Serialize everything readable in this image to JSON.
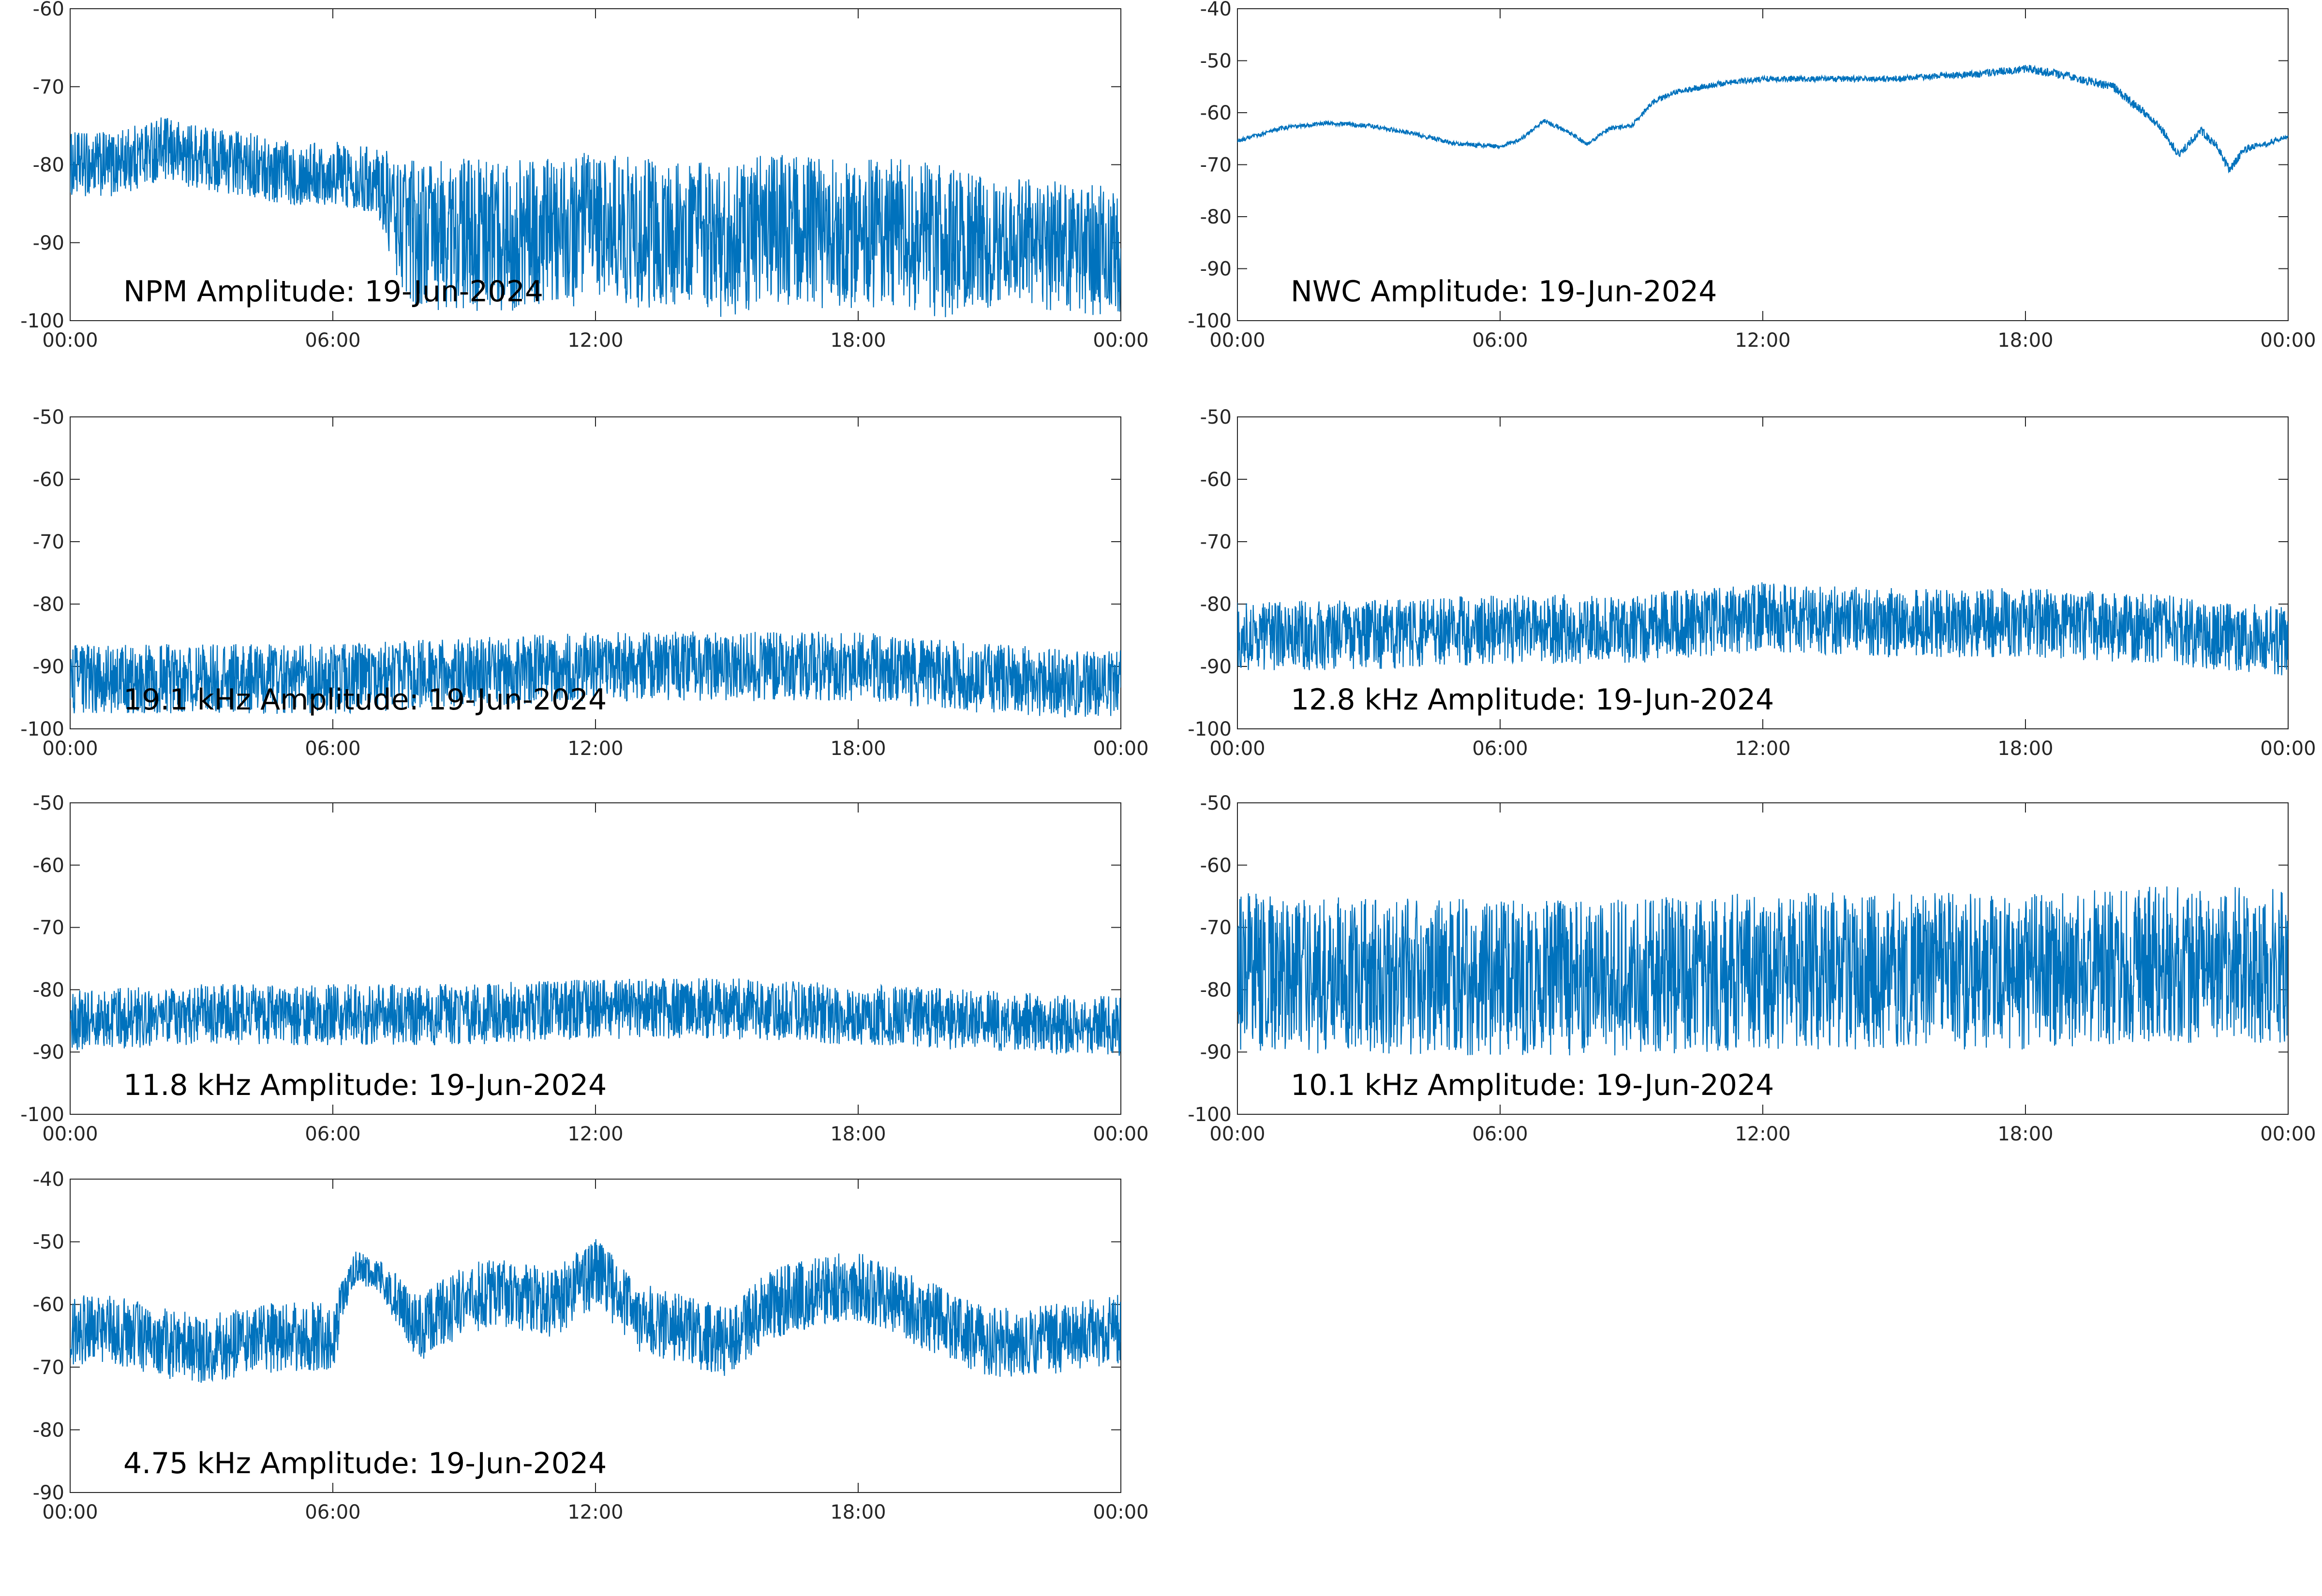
{
  "chart_data": [
    {
      "type": "line",
      "title": "NPM Amplitude: 19-Jun-2024",
      "xlabel": "",
      "ylabel": "",
      "x_ticks": [
        "00:00",
        "06:00",
        "12:00",
        "18:00",
        "00:00"
      ],
      "xlim": [
        "00:00",
        "24:00"
      ],
      "ylim": [
        -100,
        -60
      ],
      "y_ticks": [
        -60,
        -70,
        -80,
        -90,
        -100
      ],
      "grid": false,
      "line_color": "#0072BD",
      "series": [
        {
          "x": [
            "00:00",
            "01:00",
            "02:00",
            "03:00",
            "04:00",
            "05:00",
            "06:00",
            "07:00",
            "07:30",
            "08:00",
            "09:00",
            "10:00",
            "11:00",
            "12:00",
            "13:00",
            "14:00",
            "15:00",
            "16:00",
            "17:00",
            "18:00",
            "19:00",
            "20:00",
            "21:00",
            "22:00",
            "23:00",
            "24:00"
          ],
          "values": [
            -80,
            -80,
            -78,
            -79,
            -80,
            -81,
            -81,
            -82,
            -87,
            -89,
            -89,
            -89,
            -89,
            -88,
            -89,
            -89,
            -90,
            -88,
            -89,
            -89,
            -89,
            -90,
            -90,
            -90,
            -91,
            -91
          ],
          "spread": [
            3,
            3,
            3,
            3,
            3,
            3,
            3,
            3,
            6,
            7,
            7,
            7,
            7,
            7,
            7,
            7,
            7,
            7,
            7,
            7,
            7,
            7,
            6,
            6,
            6,
            6
          ]
        }
      ]
    },
    {
      "type": "line",
      "title": "NWC Amplitude: 19-Jun-2024",
      "xlabel": "",
      "ylabel": "",
      "x_ticks": [
        "00:00",
        "06:00",
        "12:00",
        "18:00",
        "00:00"
      ],
      "xlim": [
        "00:00",
        "24:00"
      ],
      "ylim": [
        -100,
        -40
      ],
      "y_ticks": [
        -40,
        -50,
        -60,
        -70,
        -80,
        -90,
        -100
      ],
      "grid": false,
      "line_color": "#0072BD",
      "series": [
        {
          "x": [
            "00:00",
            "01:00",
            "02:00",
            "03:00",
            "04:00",
            "05:00",
            "06:00",
            "06:30",
            "07:00",
            "07:30",
            "08:00",
            "08:30",
            "09:00",
            "09:30",
            "10:00",
            "11:00",
            "12:00",
            "13:00",
            "14:00",
            "15:00",
            "16:00",
            "17:00",
            "18:00",
            "19:00",
            "20:00",
            "21:00",
            "21:30",
            "22:00",
            "22:20",
            "22:40",
            "23:00",
            "23:30",
            "24:00"
          ],
          "values": [
            -65.5,
            -63,
            -62,
            -62.5,
            -64,
            -66,
            -66.5,
            -65,
            -61.5,
            -63.5,
            -66,
            -63,
            -62.5,
            -58,
            -56,
            -54.5,
            -53.5,
            -53.5,
            -53.5,
            -53.5,
            -53,
            -52.5,
            -51.5,
            -53,
            -55,
            -62,
            -68,
            -63.5,
            -66,
            -71,
            -67,
            -66,
            -64.5
          ],
          "spread": [
            0.3,
            0.3,
            0.3,
            0.3,
            0.3,
            0.3,
            0.3,
            0.3,
            0.3,
            0.3,
            0.3,
            0.3,
            0.3,
            0.4,
            0.4,
            0.4,
            0.4,
            0.4,
            0.4,
            0.4,
            0.4,
            0.5,
            0.6,
            0.6,
            0.6,
            0.6,
            0.6,
            0.6,
            0.6,
            0.6,
            0.5,
            0.4,
            0.3
          ]
        }
      ]
    },
    {
      "type": "line",
      "title": "19.1 kHz Amplitude: 19-Jun-2024",
      "xlabel": "",
      "ylabel": "",
      "x_ticks": [
        "00:00",
        "06:00",
        "12:00",
        "18:00",
        "00:00"
      ],
      "xlim": [
        "00:00",
        "24:00"
      ],
      "ylim": [
        -100,
        -50
      ],
      "y_ticks": [
        -50,
        -60,
        -70,
        -80,
        -90,
        -100
      ],
      "grid": false,
      "line_color": "#0072BD",
      "series": [
        {
          "x": [
            "00:00",
            "03:00",
            "06:00",
            "09:00",
            "12:00",
            "15:00",
            "18:00",
            "21:00",
            "24:00"
          ],
          "values": [
            -92,
            -92,
            -92,
            -91,
            -90,
            -90,
            -90,
            -92,
            -93
          ],
          "spread": [
            4,
            4,
            4,
            4,
            4,
            4,
            4,
            4,
            4
          ]
        }
      ]
    },
    {
      "type": "line",
      "title": "12.8 kHz Amplitude: 19-Jun-2024",
      "xlabel": "",
      "ylabel": "",
      "x_ticks": [
        "00:00",
        "06:00",
        "12:00",
        "18:00",
        "00:00"
      ],
      "xlim": [
        "00:00",
        "24:00"
      ],
      "ylim": [
        -100,
        -50
      ],
      "y_ticks": [
        -50,
        -60,
        -70,
        -80,
        -90,
        -100
      ],
      "grid": false,
      "line_color": "#0072BD",
      "series": [
        {
          "x": [
            "00:00",
            "03:00",
            "06:00",
            "09:00",
            "12:00",
            "15:00",
            "18:00",
            "21:00",
            "24:00"
          ],
          "values": [
            -85,
            -85,
            -84,
            -84,
            -82,
            -83,
            -83,
            -84,
            -86
          ],
          "spread": [
            4,
            4,
            4,
            4,
            4,
            4,
            4,
            4,
            4
          ]
        }
      ]
    },
    {
      "type": "line",
      "title": "11.8 kHz Amplitude: 19-Jun-2024",
      "xlabel": "",
      "ylabel": "",
      "x_ticks": [
        "00:00",
        "06:00",
        "12:00",
        "18:00",
        "00:00"
      ],
      "xlim": [
        "00:00",
        "24:00"
      ],
      "ylim": [
        -100,
        -50
      ],
      "y_ticks": [
        -50,
        -60,
        -70,
        -80,
        -90,
        -100
      ],
      "grid": false,
      "line_color": "#0072BD",
      "series": [
        {
          "x": [
            "00:00",
            "03:00",
            "06:00",
            "09:00",
            "12:00",
            "15:00",
            "18:00",
            "21:00",
            "24:00"
          ],
          "values": [
            -85,
            -84,
            -84,
            -84,
            -83,
            -83,
            -84,
            -85,
            -86
          ],
          "spread": [
            3.5,
            3.5,
            3.5,
            3.5,
            3.5,
            3.5,
            3.5,
            3.5,
            3.5
          ]
        }
      ]
    },
    {
      "type": "line",
      "title": "10.1 kHz Amplitude: 19-Jun-2024",
      "xlabel": "",
      "ylabel": "",
      "x_ticks": [
        "00:00",
        "06:00",
        "12:00",
        "18:00",
        "00:00"
      ],
      "xlim": [
        "00:00",
        "24:00"
      ],
      "ylim": [
        -100,
        -50
      ],
      "y_ticks": [
        -50,
        -60,
        -70,
        -80,
        -90,
        -100
      ],
      "grid": false,
      "line_color": "#0072BD",
      "series": [
        {
          "x": [
            "00:00",
            "03:00",
            "06:00",
            "09:00",
            "12:00",
            "15:00",
            "18:00",
            "21:00",
            "24:00"
          ],
          "values": [
            -77,
            -78,
            -78,
            -78,
            -77,
            -77,
            -77,
            -76,
            -76
          ],
          "spread": [
            9,
            9,
            9,
            9,
            9,
            9,
            9,
            9,
            9
          ]
        }
      ]
    },
    {
      "type": "line",
      "title": "4.75 kHz Amplitude: 19-Jun-2024",
      "xlabel": "",
      "ylabel": "",
      "x_ticks": [
        "00:00",
        "06:00",
        "12:00",
        "18:00",
        "00:00"
      ],
      "xlim": [
        "00:00",
        "24:00"
      ],
      "ylim": [
        -90,
        -40
      ],
      "y_ticks": [
        -40,
        -50,
        -60,
        -70,
        -80,
        -90
      ],
      "grid": false,
      "line_color": "#0072BD",
      "series": [
        {
          "x": [
            "00:00",
            "01:00",
            "02:00",
            "03:00",
            "04:00",
            "05:00",
            "06:00",
            "06:30",
            "07:00",
            "08:00",
            "09:00",
            "10:00",
            "11:00",
            "12:00",
            "13:00",
            "14:00",
            "15:00",
            "16:00",
            "17:00",
            "18:00",
            "19:00",
            "20:00",
            "21:00",
            "22:00",
            "23:00",
            "24:00"
          ],
          "values": [
            -64,
            -64,
            -66,
            -67,
            -66,
            -65,
            -65,
            -54,
            -55,
            -64,
            -59,
            -58,
            -60,
            -55,
            -62,
            -64,
            -66,
            -60,
            -58,
            -57,
            -60,
            -63,
            -66,
            -66,
            -65,
            -64
          ],
          "spread": [
            4,
            4,
            4,
            4,
            4,
            4,
            4,
            2,
            2,
            4,
            4,
            4,
            4,
            4,
            4,
            4,
            4,
            4,
            4,
            4,
            4,
            4,
            4,
            4,
            4,
            4
          ]
        }
      ]
    }
  ]
}
